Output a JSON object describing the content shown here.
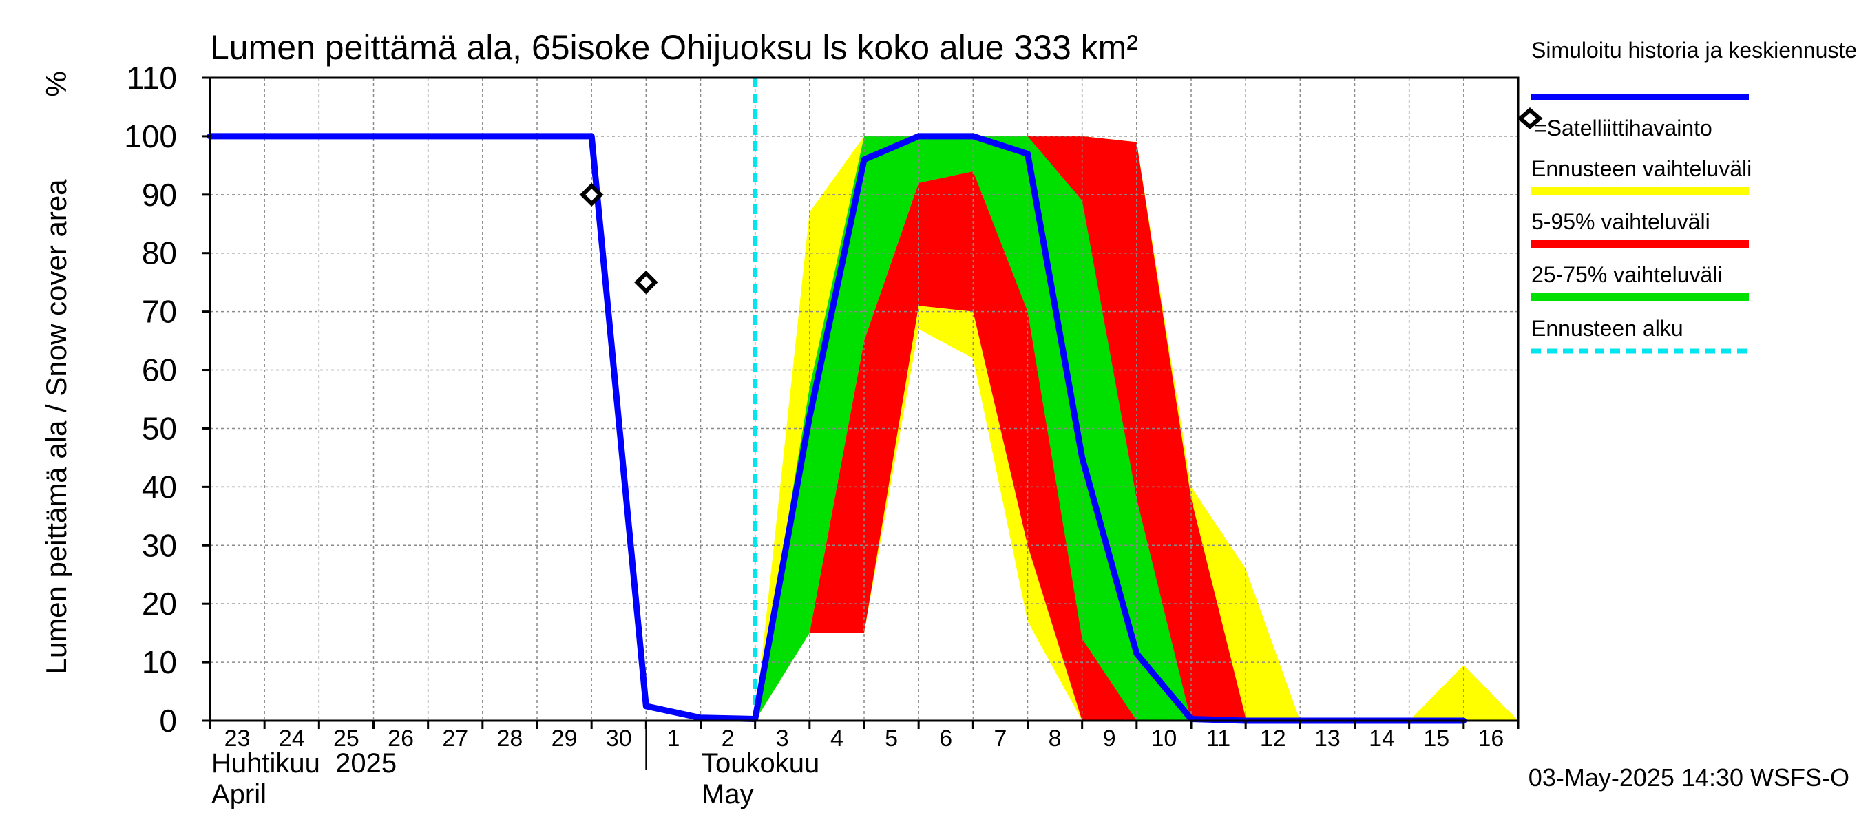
{
  "chart_data": {
    "type": "area",
    "title": "Lumen peittämä ala, 65isoke Ohijuoksu ls koko alue 333 km²",
    "ylabel": "Lumen peittämä ala / Snow cover area",
    "yunit": "%",
    "ylim": [
      0,
      110
    ],
    "yticks": [
      0,
      10,
      20,
      30,
      40,
      50,
      60,
      70,
      80,
      90,
      100,
      110
    ],
    "xlim": [
      "2025-04-23",
      "2025-05-16"
    ],
    "x_tick_labels": [
      "23",
      "24",
      "25",
      "26",
      "27",
      "28",
      "29",
      "30",
      "1",
      "2",
      "3",
      "4",
      "5",
      "6",
      "7",
      "8",
      "9",
      "10",
      "11",
      "12",
      "13",
      "14",
      "15",
      "16"
    ],
    "month_labels": [
      {
        "fi": "Huhtikuu  2025",
        "en": "April"
      },
      {
        "fi": "Toukokuu",
        "en": "May"
      }
    ],
    "footer": "03-May-2025 14:30 WSFS-O",
    "forecast_start": "2025-05-03",
    "grid": true,
    "legend_position": "right",
    "legend": [
      {
        "label": "Simuloitu historia ja keskiennuste",
        "color": "#0000ff",
        "kind": "line"
      },
      {
        "label": "=Satelliittihavainto",
        "color": "#000000",
        "kind": "marker"
      },
      {
        "label": "Ennusteen vaihteluväli",
        "color": "#ffff00",
        "kind": "band"
      },
      {
        "label": "5-95% vaihteluväli",
        "color": "#ff0000",
        "kind": "band"
      },
      {
        "label": "25-75% vaihteluväli",
        "color": "#00e000",
        "kind": "band"
      },
      {
        "label": "Ennusteen alku",
        "color": "#00e5ee",
        "kind": "dashed"
      }
    ],
    "series": [
      {
        "name": "Simuloitu historia ja keskiennuste",
        "color": "#0000ff",
        "x": [
          "2025-04-23",
          "2025-04-30",
          "2025-05-01",
          "2025-05-02",
          "2025-05-03",
          "2025-05-04",
          "2025-05-05",
          "2025-05-06",
          "2025-05-07",
          "2025-05-08",
          "2025-05-09",
          "2025-05-10",
          "2025-05-11",
          "2025-05-12",
          "2025-05-13",
          "2025-05-16"
        ],
        "y": [
          100,
          100,
          2.5,
          0.5,
          0.3,
          52,
          96,
          100,
          100,
          97,
          45,
          11.5,
          0.3,
          0,
          0,
          0
        ]
      },
      {
        "name": "Ennusteen vaihteluväli",
        "color": "#ffff00",
        "x": [
          "2025-05-03",
          "2025-05-04",
          "2025-05-05",
          "2025-05-06",
          "2025-05-07",
          "2025-05-08",
          "2025-05-09",
          "2025-05-10",
          "2025-05-11",
          "2025-05-12",
          "2025-05-13",
          "2025-05-14",
          "2025-05-15",
          "2025-05-16",
          "2025-05-17"
        ],
        "lower": [
          0,
          15,
          15,
          67,
          62,
          17,
          0,
          0,
          0,
          0,
          0,
          0,
          0,
          0,
          0
        ],
        "upper": [
          0,
          87,
          100,
          100,
          100,
          100,
          100,
          99,
          40,
          26,
          0,
          0,
          0,
          9.5,
          0
        ]
      },
      {
        "name": "5-95% vaihteluväli",
        "color": "#ff0000",
        "x": [
          "2025-05-03",
          "2025-05-04",
          "2025-05-05",
          "2025-05-06",
          "2025-05-07",
          "2025-05-08",
          "2025-05-09",
          "2025-05-10",
          "2025-05-11",
          "2025-05-12",
          "2025-05-13"
        ],
        "lower": [
          0,
          15,
          15,
          71,
          70,
          30,
          0,
          0,
          0,
          0,
          0
        ],
        "upper": [
          0,
          15,
          65,
          92,
          94,
          100,
          100,
          99,
          38,
          0.5,
          0
        ]
      },
      {
        "name": "25-75% vaihteluväli",
        "color": "#00e000",
        "x": [
          "2025-05-03",
          "2025-05-04",
          "2025-05-05",
          "2025-05-06",
          "2025-05-07",
          "2025-05-08",
          "2025-05-09",
          "2025-05-10",
          "2025-05-11"
        ],
        "lower": [
          0,
          15,
          65,
          92,
          94,
          70,
          14,
          0,
          0
        ],
        "upper": [
          0,
          57,
          100,
          100,
          100,
          100,
          89,
          38,
          0
        ]
      }
    ],
    "observations": {
      "name": "=Satelliittihavainto",
      "x": [
        "2025-04-30",
        "2025-05-01"
      ],
      "y": [
        90,
        75
      ]
    }
  }
}
